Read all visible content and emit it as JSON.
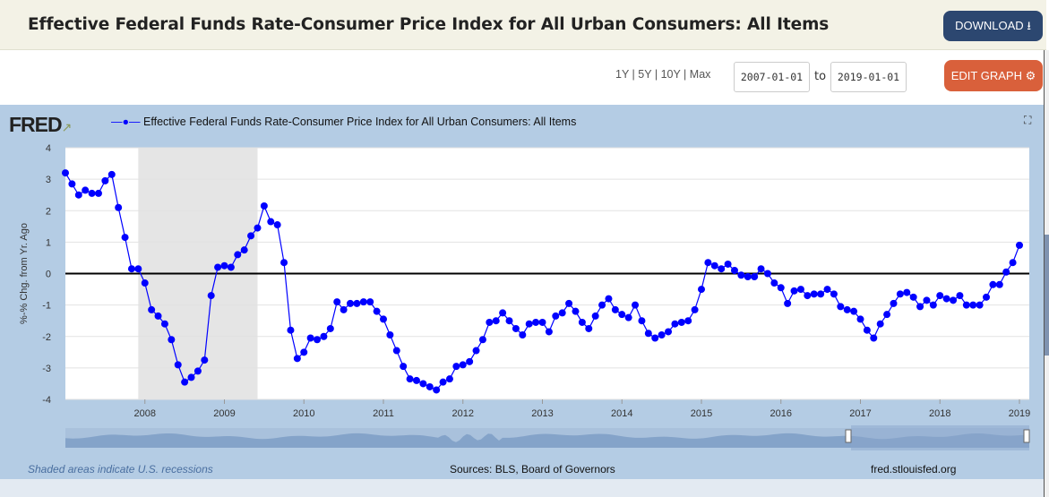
{
  "header": {
    "title": "Effective Federal Funds Rate-Consumer Price Index for All Urban Consumers: All Items",
    "download_label": "DOWNLOAD"
  },
  "controls": {
    "ranges": [
      "1Y",
      "5Y",
      "10Y",
      "Max"
    ],
    "start_date": "2007-01-01",
    "to_label": "to",
    "end_date": "2019-01-01",
    "edit_label": "EDIT GRAPH"
  },
  "icons": {
    "download": "download-icon",
    "edit": "gear-icon",
    "fullscreen": "fullscreen-icon"
  },
  "chart_meta": {
    "logo": "FRED",
    "footer_left": "Shaded areas indicate U.S. recessions",
    "footer_center": "Sources: BLS, Board of Governors",
    "footer_right": "fred.stlouisfed.org"
  },
  "colors": {
    "series": "#0000ff",
    "recession": "#e5e5e5",
    "panel": "#b4cce4",
    "download": "#2c4770",
    "edit": "#d9603b"
  },
  "chart_data": {
    "type": "line",
    "title": "",
    "ylabel": "%-% Chg. from Yr. Ago",
    "xlabel": "",
    "ylim": [
      -4,
      4
    ],
    "yticks": [
      -4,
      -3,
      -2,
      -1,
      0,
      1,
      2,
      3,
      4
    ],
    "xticks": [
      "2008",
      "2009",
      "2010",
      "2011",
      "2012",
      "2013",
      "2014",
      "2015",
      "2016",
      "2017",
      "2018",
      "2019"
    ],
    "x_start": "2007-01",
    "x_end": "2019-01",
    "frequency": "monthly",
    "grid": true,
    "legend": "top-left",
    "recessions": [
      [
        "2007-12",
        "2009-06"
      ]
    ],
    "series": [
      {
        "name": "Effective Federal Funds Rate-Consumer Price Index for All Urban Consumers: All Items",
        "values": [
          3.2,
          2.85,
          2.5,
          2.65,
          2.55,
          2.55,
          2.95,
          3.15,
          2.1,
          1.15,
          0.15,
          0.15,
          -0.3,
          -1.15,
          -1.35,
          -1.6,
          -2.1,
          -2.9,
          -3.45,
          -3.3,
          -3.1,
          -2.75,
          -0.7,
          0.2,
          0.25,
          0.2,
          0.6,
          0.75,
          1.2,
          1.45,
          2.15,
          1.65,
          1.55,
          0.35,
          -1.8,
          -2.7,
          -2.5,
          -2.05,
          -2.1,
          -2.0,
          -1.75,
          -0.9,
          -1.15,
          -0.95,
          -0.95,
          -0.9,
          -0.9,
          -1.2,
          -1.45,
          -1.95,
          -2.45,
          -2.95,
          -3.35,
          -3.4,
          -3.5,
          -3.6,
          -3.7,
          -3.45,
          -3.35,
          -2.95,
          -2.9,
          -2.8,
          -2.45,
          -2.1,
          -1.55,
          -1.5,
          -1.25,
          -1.5,
          -1.75,
          -1.95,
          -1.6,
          -1.55,
          -1.55,
          -1.85,
          -1.35,
          -1.25,
          -0.95,
          -1.2,
          -1.55,
          -1.75,
          -1.35,
          -1.0,
          -0.8,
          -1.15,
          -1.3,
          -1.4,
          -1.0,
          -1.5,
          -1.9,
          -2.05,
          -1.95,
          -1.85,
          -1.6,
          -1.55,
          -1.5,
          -1.15,
          -0.5,
          0.35,
          0.25,
          0.15,
          0.3,
          0.1,
          -0.05,
          -0.1,
          -0.1,
          0.15,
          0.0,
          -0.3,
          -0.45,
          -0.95,
          -0.55,
          -0.5,
          -0.7,
          -0.65,
          -0.65,
          -0.5,
          -0.65,
          -1.05,
          -1.15,
          -1.2,
          -1.45,
          -1.8,
          -2.05,
          -1.6,
          -1.3,
          -0.95,
          -0.65,
          -0.6,
          -0.75,
          -1.05,
          -0.85,
          -1.0,
          -0.7,
          -0.8,
          -0.85,
          -0.7,
          -1.0,
          -1.0,
          -1.0,
          -0.75,
          -0.35,
          -0.35,
          0.05,
          0.35,
          0.9
        ]
      }
    ]
  }
}
